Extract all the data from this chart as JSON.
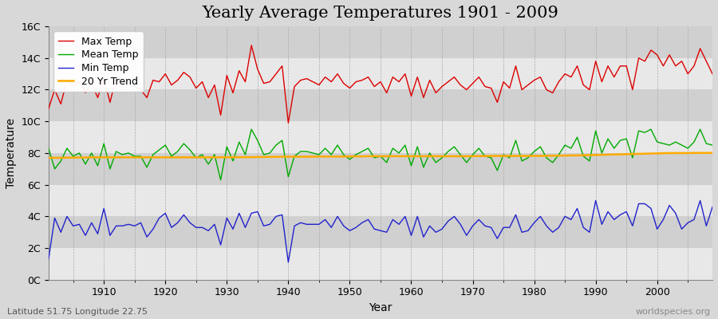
{
  "title": "Yearly Average Temperatures 1901 - 2009",
  "xlabel": "Year",
  "ylabel": "Temperature",
  "lat_lon_label": "Latitude 51.75 Longitude 22.75",
  "watermark": "worldspecies.org",
  "years": [
    1901,
    1902,
    1903,
    1904,
    1905,
    1906,
    1907,
    1908,
    1909,
    1910,
    1911,
    1912,
    1913,
    1914,
    1915,
    1916,
    1917,
    1918,
    1919,
    1920,
    1921,
    1922,
    1923,
    1924,
    1925,
    1926,
    1927,
    1928,
    1929,
    1930,
    1931,
    1932,
    1933,
    1934,
    1935,
    1936,
    1937,
    1938,
    1939,
    1940,
    1941,
    1942,
    1943,
    1944,
    1945,
    1946,
    1947,
    1948,
    1949,
    1950,
    1951,
    1952,
    1953,
    1954,
    1955,
    1956,
    1957,
    1958,
    1959,
    1960,
    1961,
    1962,
    1963,
    1964,
    1965,
    1966,
    1967,
    1968,
    1969,
    1970,
    1971,
    1972,
    1973,
    1974,
    1975,
    1976,
    1977,
    1978,
    1979,
    1980,
    1981,
    1982,
    1983,
    1984,
    1985,
    1986,
    1987,
    1988,
    1989,
    1990,
    1991,
    1992,
    1993,
    1994,
    1995,
    1996,
    1997,
    1998,
    1999,
    2000,
    2001,
    2002,
    2003,
    2004,
    2005,
    2006,
    2007,
    2008,
    2009
  ],
  "max_temp": [
    10.8,
    12.0,
    11.1,
    12.6,
    12.2,
    12.5,
    11.8,
    12.4,
    11.5,
    12.7,
    11.2,
    12.8,
    12.4,
    12.5,
    12.2,
    12.0,
    11.5,
    12.6,
    12.5,
    13.0,
    12.3,
    12.6,
    13.1,
    12.8,
    12.1,
    12.5,
    11.5,
    12.3,
    10.4,
    12.9,
    11.8,
    13.2,
    12.5,
    14.8,
    13.3,
    12.4,
    12.5,
    13.0,
    13.5,
    9.9,
    12.2,
    12.6,
    12.7,
    12.5,
    12.3,
    12.8,
    12.5,
    13.0,
    12.4,
    12.1,
    12.5,
    12.6,
    12.8,
    12.2,
    12.5,
    11.8,
    12.8,
    12.5,
    13.0,
    11.6,
    12.8,
    11.5,
    12.6,
    11.8,
    12.2,
    12.5,
    12.8,
    12.3,
    12.0,
    12.4,
    12.8,
    12.2,
    12.1,
    11.2,
    12.5,
    12.1,
    13.5,
    12.0,
    12.3,
    12.6,
    12.8,
    12.0,
    11.8,
    12.5,
    13.0,
    12.8,
    13.5,
    12.3,
    12.0,
    13.8,
    12.5,
    13.5,
    12.8,
    13.5,
    13.5,
    12.0,
    14.0,
    13.8,
    14.5,
    14.2,
    13.5,
    14.2,
    13.5,
    13.8,
    13.0,
    13.5,
    14.6,
    13.8,
    13.0
  ],
  "mean_temp": [
    8.3,
    7.0,
    7.5,
    8.3,
    7.8,
    8.0,
    7.3,
    8.0,
    7.2,
    8.6,
    7.0,
    8.1,
    7.9,
    8.0,
    7.8,
    7.8,
    7.1,
    7.9,
    8.2,
    8.5,
    7.8,
    8.1,
    8.6,
    8.2,
    7.7,
    7.9,
    7.3,
    7.9,
    6.3,
    8.4,
    7.5,
    8.7,
    7.9,
    9.5,
    8.8,
    7.9,
    8.0,
    8.5,
    8.8,
    6.5,
    7.8,
    8.1,
    8.1,
    8.0,
    7.9,
    8.3,
    7.9,
    8.5,
    7.9,
    7.6,
    7.9,
    8.1,
    8.3,
    7.7,
    7.8,
    7.4,
    8.3,
    8.0,
    8.5,
    7.2,
    8.4,
    7.1,
    8.0,
    7.4,
    7.7,
    8.1,
    8.4,
    7.9,
    7.4,
    7.9,
    8.3,
    7.8,
    7.7,
    6.9,
    7.9,
    7.7,
    8.8,
    7.5,
    7.7,
    8.1,
    8.4,
    7.7,
    7.4,
    7.9,
    8.5,
    8.3,
    9.0,
    7.8,
    7.5,
    9.4,
    8.0,
    8.9,
    8.3,
    8.8,
    8.9,
    7.7,
    9.4,
    9.3,
    9.5,
    8.7,
    8.6,
    8.5,
    8.7,
    8.5,
    8.3,
    8.7,
    9.5,
    8.6,
    8.5
  ],
  "min_temp": [
    1.3,
    3.9,
    3.0,
    4.0,
    3.4,
    3.5,
    2.8,
    3.6,
    2.9,
    4.5,
    2.8,
    3.4,
    3.4,
    3.5,
    3.4,
    3.6,
    2.7,
    3.2,
    3.9,
    4.2,
    3.3,
    3.6,
    4.1,
    3.6,
    3.3,
    3.3,
    3.1,
    3.5,
    2.2,
    3.9,
    3.2,
    4.2,
    3.3,
    4.2,
    4.3,
    3.4,
    3.5,
    4.0,
    4.1,
    1.1,
    3.4,
    3.6,
    3.5,
    3.5,
    3.5,
    3.8,
    3.3,
    4.0,
    3.4,
    3.1,
    3.3,
    3.6,
    3.8,
    3.2,
    3.1,
    3.0,
    3.8,
    3.5,
    4.0,
    2.8,
    4.0,
    2.7,
    3.4,
    3.0,
    3.2,
    3.7,
    4.0,
    3.5,
    2.8,
    3.4,
    3.8,
    3.4,
    3.3,
    2.6,
    3.3,
    3.3,
    4.1,
    3.0,
    3.1,
    3.6,
    4.0,
    3.4,
    3.0,
    3.3,
    4.0,
    3.8,
    4.5,
    3.3,
    3.0,
    5.0,
    3.5,
    4.3,
    3.8,
    4.1,
    4.3,
    3.4,
    4.8,
    4.8,
    4.5,
    3.2,
    3.8,
    4.7,
    4.2,
    3.2,
    3.6,
    3.8,
    5.0,
    3.4,
    4.6
  ],
  "trend": [
    7.7,
    7.7,
    7.7,
    7.71,
    7.71,
    7.72,
    7.72,
    7.73,
    7.73,
    7.73,
    7.73,
    7.73,
    7.73,
    7.73,
    7.73,
    7.73,
    7.73,
    7.73,
    7.73,
    7.73,
    7.73,
    7.73,
    7.73,
    7.73,
    7.73,
    7.73,
    7.73,
    7.73,
    7.73,
    7.73,
    7.74,
    7.74,
    7.74,
    7.74,
    7.75,
    7.75,
    7.76,
    7.76,
    7.77,
    7.77,
    7.77,
    7.77,
    7.77,
    7.77,
    7.78,
    7.78,
    7.78,
    7.78,
    7.78,
    7.79,
    7.79,
    7.79,
    7.8,
    7.8,
    7.8,
    7.8,
    7.8,
    7.8,
    7.8,
    7.8,
    7.8,
    7.8,
    7.8,
    7.8,
    7.8,
    7.8,
    7.8,
    7.8,
    7.8,
    7.8,
    7.81,
    7.81,
    7.82,
    7.82,
    7.82,
    7.82,
    7.82,
    7.82,
    7.82,
    7.82,
    7.82,
    7.83,
    7.83,
    7.84,
    7.84,
    7.85,
    7.85,
    7.86,
    7.87,
    7.88,
    7.89,
    7.9,
    7.91,
    7.92,
    7.93,
    7.94,
    7.95,
    7.96,
    7.97,
    7.98,
    7.99,
    8.0,
    8.0,
    8.0,
    8.0,
    8.01,
    8.01,
    8.01,
    8.01
  ],
  "bg_color": "#d8d8d8",
  "plot_bg_color": "#d8d8d8",
  "max_color": "#dd0000",
  "mean_color": "#00aa00",
  "min_color": "#2222cc",
  "trend_color": "#ffaa00",
  "grid_color": "#bbbbbb",
  "band_color_light": "#e8e8e8",
  "band_color_dark": "#d0d0d0",
  "ylim": [
    0,
    16
  ],
  "yticks": [
    0,
    2,
    4,
    6,
    8,
    10,
    12,
    14,
    16
  ],
  "ytick_labels": [
    "0C",
    "2C",
    "4C",
    "6C",
    "8C",
    "10C",
    "12C",
    "14C",
    "16C"
  ],
  "title_fontsize": 15,
  "axis_label_fontsize": 10,
  "tick_fontsize": 9,
  "legend_fontsize": 9
}
